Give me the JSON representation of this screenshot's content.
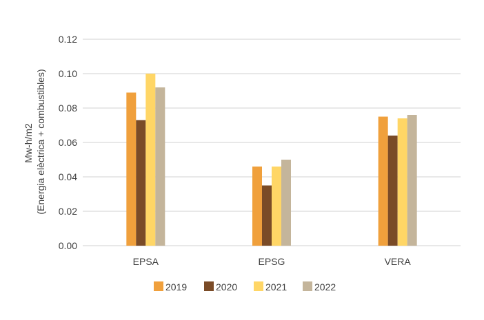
{
  "chart_data": {
    "type": "bar",
    "categories": [
      "EPSA",
      "EPSG",
      "VERA"
    ],
    "series": [
      {
        "name": "2019",
        "color": "#F0A03C",
        "values": [
          0.089,
          0.046,
          0.075
        ]
      },
      {
        "name": "2020",
        "color": "#7A4B27",
        "values": [
          0.073,
          0.035,
          0.064
        ]
      },
      {
        "name": "2021",
        "color": "#FFD666",
        "values": [
          0.1,
          0.046,
          0.074
        ]
      },
      {
        "name": "2022",
        "color": "#C4B59B",
        "values": [
          0.092,
          0.05,
          0.076
        ]
      }
    ],
    "ylabel_line1": "Mw-h/m2",
    "ylabel_line2": "(Energia elèctrica + combustibles)",
    "ylim": [
      0,
      0.12
    ],
    "yticks": [
      "0.00",
      "0.02",
      "0.04",
      "0.06",
      "0.08",
      "0.10",
      "0.12"
    ],
    "grid": true,
    "legend_position": "bottom"
  }
}
